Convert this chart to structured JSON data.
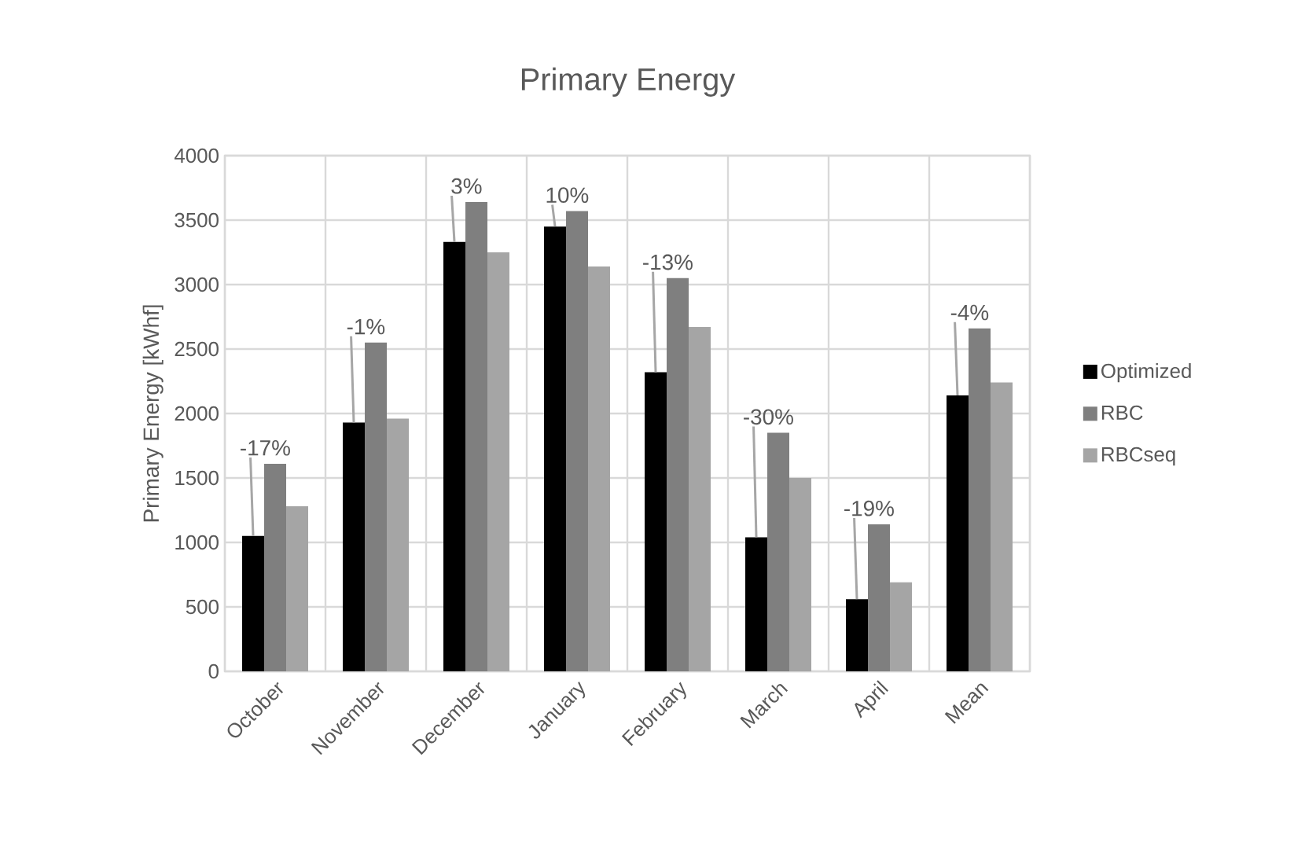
{
  "chart_data": {
    "type": "bar",
    "title": "Primary Energy",
    "ylabel": "Primary Energy [kWhf]",
    "categories": [
      "October",
      "November",
      "December",
      "January",
      "February",
      "March",
      "April",
      "Mean"
    ],
    "series": [
      {
        "name": "Optimized",
        "color": "#000000",
        "values": [
          1050,
          1930,
          3330,
          3450,
          2320,
          1040,
          560,
          2140
        ]
      },
      {
        "name": "RBC",
        "color": "#7f7f7f",
        "values": [
          1610,
          2550,
          3640,
          3570,
          3050,
          1850,
          1140,
          2660
        ]
      },
      {
        "name": "RBCseq",
        "color": "#a5a5a5",
        "values": [
          1280,
          1960,
          3250,
          3140,
          2670,
          1500,
          690,
          2240
        ]
      }
    ],
    "annotations": [
      {
        "text": "-17%",
        "x": "October",
        "y": 1610
      },
      {
        "text": "-1%",
        "x": "November",
        "y": 2550
      },
      {
        "text": "3%",
        "x": "December",
        "y": 3640
      },
      {
        "text": "10%",
        "x": "January",
        "y": 3570
      },
      {
        "text": "-13%",
        "x": "February",
        "y": 3050
      },
      {
        "text": "-30%",
        "x": "March",
        "y": 1850
      },
      {
        "text": "-19%",
        "x": "April",
        "y": 1140
      },
      {
        "text": "-4%",
        "x": "Mean",
        "y": 2660
      }
    ],
    "ylim": [
      0,
      4000
    ],
    "yticks": [
      0,
      500,
      1000,
      1500,
      2000,
      2500,
      3000,
      3500,
      4000
    ],
    "grid": true,
    "legend": "right"
  }
}
